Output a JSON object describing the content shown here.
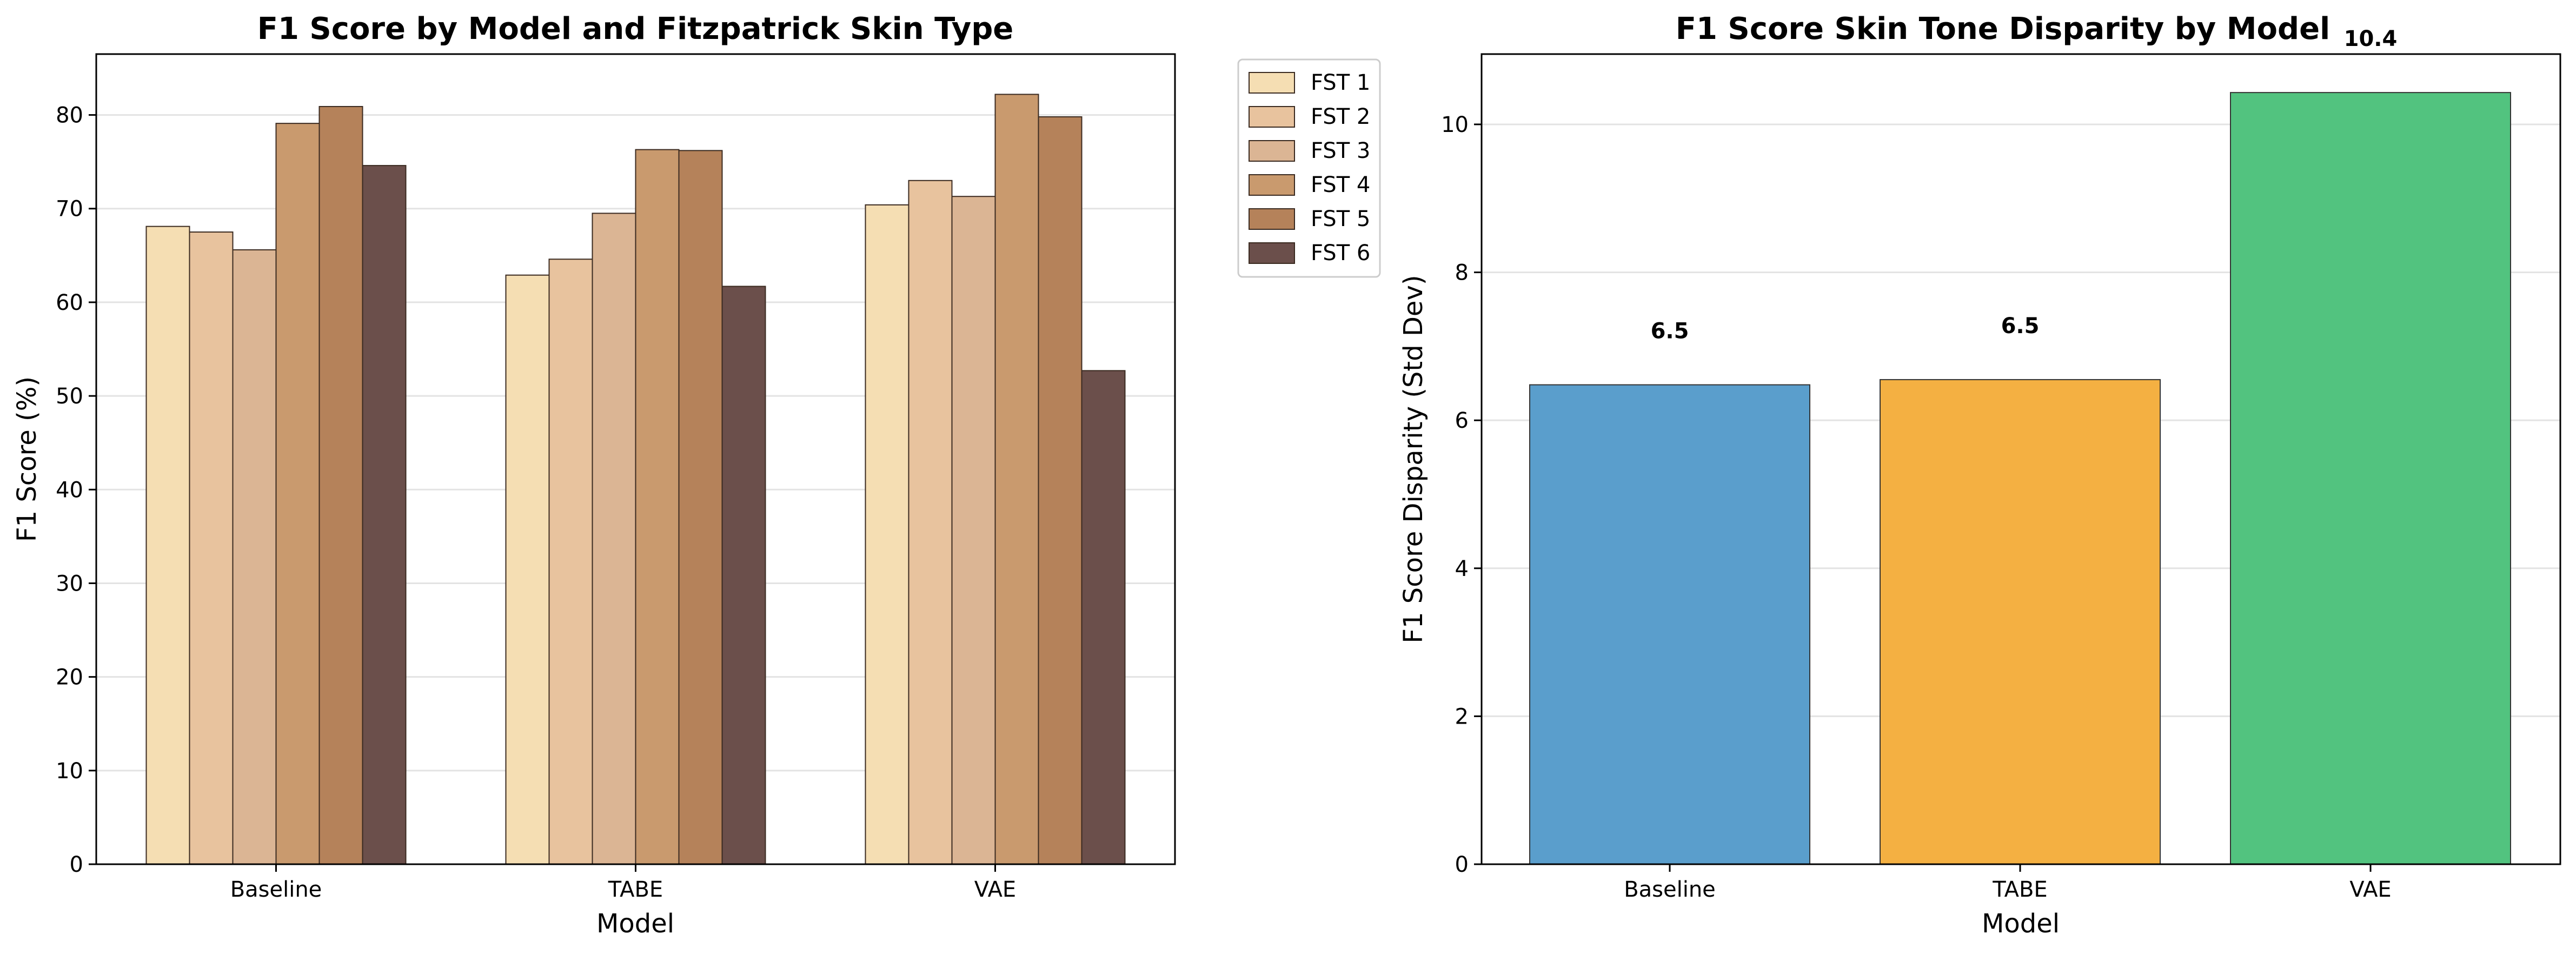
{
  "chart_data": [
    {
      "type": "bar",
      "title": "F1 Score by Model and Fitzpatrick Skin Type",
      "xlabel": "Model",
      "ylabel": "F1 Score (%)",
      "categories": [
        "Baseline",
        "TABE",
        "VAE"
      ],
      "ylim": [
        0,
        86.5
      ],
      "yticks": [
        "0",
        "10",
        "20",
        "30",
        "40",
        "50",
        "60",
        "70",
        "80"
      ],
      "grid": "horizontal",
      "legend_position": "outside-right",
      "series": [
        {
          "name": "FST 1",
          "color": "#F5DEB3",
          "values": [
            68.1,
            62.9,
            70.4
          ]
        },
        {
          "name": "FST 2",
          "color": "#E8C39E",
          "values": [
            67.5,
            64.6,
            73.0
          ]
        },
        {
          "name": "FST 3",
          "color": "#DBB594",
          "values": [
            65.6,
            69.5,
            71.3
          ]
        },
        {
          "name": "FST 4",
          "color": "#C99A6E",
          "values": [
            79.1,
            76.3,
            82.2
          ]
        },
        {
          "name": "FST 5",
          "color": "#B5825A",
          "values": [
            80.9,
            76.2,
            79.8
          ]
        },
        {
          "name": "FST 6",
          "color": "#6B4F4B",
          "values": [
            74.6,
            61.7,
            52.7
          ]
        }
      ]
    },
    {
      "type": "bar",
      "title": "F1 Score Skin Tone Disparity by Model",
      "xlabel": "Model",
      "ylabel": "F1 Score Disparity (Std Dev)",
      "categories": [
        "Baseline",
        "TABE",
        "VAE"
      ],
      "values": [
        6.48,
        6.55,
        10.43
      ],
      "value_labels": [
        "6.5",
        "6.5",
        "10.4"
      ],
      "colors": [
        "#5A9ECC",
        "#F4B042",
        "#52C37F"
      ],
      "ylim": [
        0,
        10.95
      ],
      "yticks": [
        "0",
        "2",
        "4",
        "6",
        "8",
        "10"
      ],
      "grid": "horizontal"
    }
  ]
}
